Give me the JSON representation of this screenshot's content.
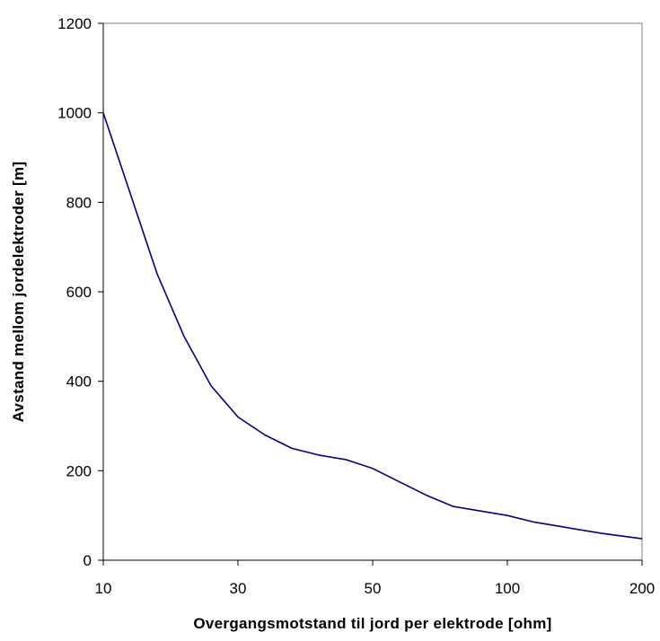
{
  "chart_data": {
    "type": "line",
    "title": "",
    "xlabel": "Overgangsmotstand til jord per elektrode [ohm]",
    "ylabel": "Avstand mellom jordelektroder [m]",
    "x_scale": "categorical",
    "x_ticks": [
      "10",
      "30",
      "50",
      "100",
      "200"
    ],
    "ylim": [
      0,
      1200
    ],
    "y_ticks": [
      "0",
      "200",
      "400",
      "600",
      "800",
      "1000",
      "1200"
    ],
    "grid": false,
    "legend": "none",
    "line_color": "#000080",
    "series": [
      {
        "x": [
          10,
          14,
          18,
          22,
          26,
          30,
          34,
          38,
          42,
          46,
          50,
          60,
          70,
          80,
          100,
          120,
          140,
          170,
          200
        ],
        "values": [
          1000,
          820,
          640,
          500,
          390,
          320,
          280,
          250,
          235,
          225,
          205,
          175,
          145,
          120,
          100,
          85,
          75,
          60,
          48
        ]
      }
    ]
  }
}
